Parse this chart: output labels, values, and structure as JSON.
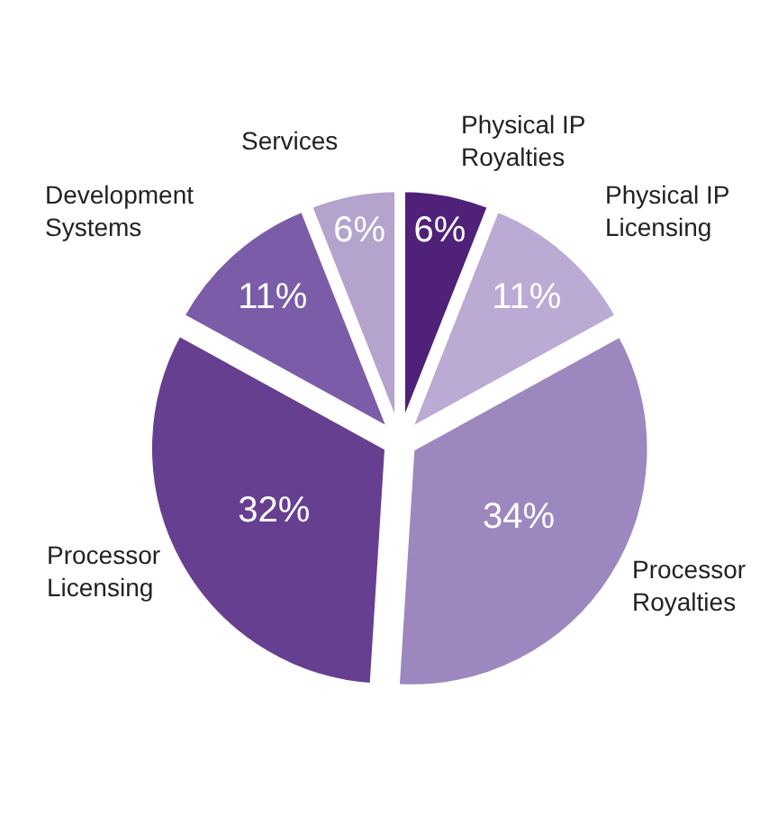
{
  "chart_data": {
    "type": "pie",
    "categories": [
      "Physical IP\nRoyalties",
      "Physical IP\nLicensing",
      "Processor\nRoyalties",
      "Processor\nLicensing",
      "Development\nSystems",
      "Services"
    ],
    "values": [
      6,
      11,
      34,
      32,
      11,
      6
    ],
    "value_labels": [
      "6%",
      "11%",
      "34%",
      "32%",
      "11%",
      "6%"
    ],
    "colors": [
      "#4f2179",
      "#baaad4",
      "#9c88bf",
      "#673f91",
      "#7a5ca8",
      "#b3a3cd"
    ],
    "legend": false
  }
}
